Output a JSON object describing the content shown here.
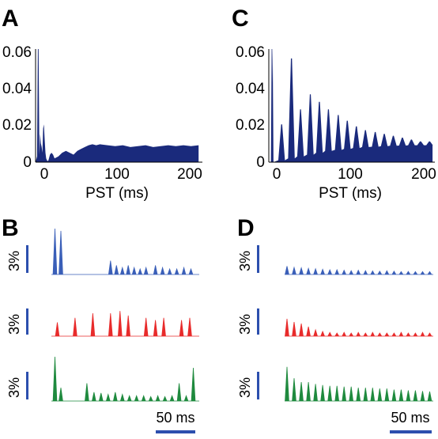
{
  "figure": {
    "panel_letters": [
      "A",
      "C",
      "B",
      "D"
    ],
    "colors": {
      "psth": "#1a2a7c",
      "scale": "#2c4fae",
      "blue": "#3a5fb8",
      "red": "#e82b2b",
      "green": "#1f8a3e"
    },
    "scalebar_time": "50 ms",
    "scalebar_pct": "3%"
  },
  "chart_data": [
    {
      "panel": "A",
      "type": "area",
      "xlabel": "PST (ms)",
      "ylabel": "",
      "xlim": [
        -5,
        215
      ],
      "ylim": [
        0,
        0.06
      ],
      "xticks": [
        0,
        100,
        200
      ],
      "yticks": [
        0,
        0.02,
        0.04,
        0.06
      ],
      "xtick_labels": [
        "0",
        "100",
        "200"
      ],
      "ytick_labels": [
        "0",
        "0.02",
        "0.04",
        "0.06"
      ],
      "series": [
        {
          "x": [
            -5,
            -3,
            -2,
            -1,
            0,
            1,
            2,
            3,
            4,
            5,
            6,
            7,
            8,
            9,
            10,
            11,
            12,
            14,
            16,
            18,
            20,
            25,
            30,
            35,
            40,
            45,
            50,
            55,
            60,
            65,
            70,
            75,
            80,
            90,
            100,
            110,
            120,
            130,
            140,
            150,
            160,
            170,
            180,
            190,
            200,
            210
          ],
          "y": [
            0,
            0.003,
            0.06,
            0.06,
            0.004,
            0.015,
            0.01,
            0.008,
            0.005,
            0.018,
            0.02,
            0.012,
            0.005,
            0.002,
            0.001,
            0.0005,
            0.001,
            0.004,
            0.005,
            0.004,
            0.002,
            0.003,
            0.005,
            0.006,
            0.005,
            0.004,
            0.006,
            0.007,
            0.008,
            0.009,
            0.0095,
            0.009,
            0.0095,
            0.009,
            0.0085,
            0.009,
            0.008,
            0.0085,
            0.009,
            0.008,
            0.0085,
            0.009,
            0.0085,
            0.009,
            0.0085,
            0.009
          ]
        }
      ]
    },
    {
      "panel": "C",
      "type": "area",
      "xlabel": "PST (ms)",
      "ylabel": "",
      "xlim": [
        -5,
        215
      ],
      "ylim": [
        0,
        0.06
      ],
      "xticks": [
        0,
        100,
        200
      ],
      "yticks": [
        0,
        0.02,
        0.04,
        0.06
      ],
      "xtick_labels": [
        "0",
        "100",
        "200"
      ],
      "ytick_labels": [
        "0",
        "0.02",
        "0.04",
        "0.06"
      ],
      "series": [
        {
          "peaks_x": [
            -1,
            0,
            12,
            25,
            37,
            50,
            62,
            74,
            87,
            99,
            111,
            123,
            136,
            148,
            160,
            172,
            184,
            196,
            208
          ],
          "peaks_y": [
            0.06,
            0.06,
            0.02,
            0.055,
            0.028,
            0.036,
            0.032,
            0.028,
            0.025,
            0.022,
            0.019,
            0.017,
            0.016,
            0.015,
            0.014,
            0.013,
            0.012,
            0.011,
            0.011
          ],
          "troughs_y": [
            0.0,
            0.0,
            0.001,
            0.002,
            0.003,
            0.004,
            0.005,
            0.006,
            0.0065,
            0.007,
            0.0075,
            0.008,
            0.0082,
            0.0085,
            0.0087,
            0.0088,
            0.009,
            0.009,
            0.009
          ]
        }
      ]
    },
    {
      "panel": "B",
      "type": "area",
      "series": [
        {
          "name": "",
          "color": "blue",
          "peaks_x": [
            3,
            8,
            50,
            55,
            60,
            65,
            70,
            75,
            80,
            88,
            94,
            100,
            106,
            112,
            118
          ],
          "peaks_y": [
            1.0,
            0.95,
            0.3,
            0.2,
            0.15,
            0.2,
            0.15,
            0.12,
            0.15,
            0.2,
            0.15,
            0.12,
            0.12,
            0.15,
            0.12
          ]
        },
        {
          "name": "",
          "color": "red",
          "peaks_x": [
            5,
            20,
            35,
            50,
            58,
            65,
            80,
            88,
            95,
            110,
            117
          ],
          "peaks_y": [
            0.3,
            0.4,
            0.5,
            0.5,
            0.55,
            0.45,
            0.4,
            0.35,
            0.4,
            0.35,
            0.4
          ]
        },
        {
          "name": "",
          "color": "green",
          "peaks_x": [
            3,
            8,
            30,
            36,
            42,
            48,
            54,
            60,
            66,
            72,
            78,
            84,
            90,
            96,
            102,
            108,
            114,
            120
          ],
          "peaks_y": [
            1.0,
            0.3,
            0.4,
            0.2,
            0.18,
            0.15,
            0.2,
            0.15,
            0.12,
            0.12,
            0.12,
            0.1,
            0.12,
            0.1,
            0.12,
            0.4,
            0.12,
            0.75
          ]
        }
      ]
    },
    {
      "panel": "D",
      "type": "area",
      "series": [
        {
          "name": "",
          "color": "blue",
          "peaks_x": [
            2,
            8,
            14,
            20,
            26,
            32,
            38,
            44,
            50,
            56,
            62,
            68,
            74,
            80,
            86,
            92,
            98,
            104,
            110,
            116,
            122
          ],
          "peaks_y": [
            0.35,
            0.3,
            0.28,
            0.26,
            0.24,
            0.22,
            0.2,
            0.2,
            0.18,
            0.16,
            0.18,
            0.16,
            0.15,
            0.14,
            0.16,
            0.14,
            0.12,
            0.13,
            0.12,
            0.12,
            0.12
          ]
        },
        {
          "name": "",
          "color": "red",
          "peaks_x": [
            2,
            8,
            14,
            20,
            26,
            32,
            38,
            44,
            50,
            56,
            62,
            68,
            74,
            80,
            86,
            92,
            98,
            104,
            110,
            116,
            122
          ],
          "peaks_y": [
            0.55,
            0.45,
            0.4,
            0.3,
            0.2,
            0.15,
            0.12,
            0.1,
            0.12,
            0.1,
            0.12,
            0.1,
            0.12,
            0.1,
            0.1,
            0.1,
            0.12,
            0.1,
            0.1,
            0.12,
            0.1
          ]
        },
        {
          "name": "",
          "color": "green",
          "peaks_x": [
            2,
            8,
            14,
            20,
            26,
            32,
            38,
            44,
            50,
            56,
            62,
            68,
            74,
            80,
            86,
            92,
            98,
            104,
            110,
            116,
            122
          ],
          "peaks_y": [
            0.9,
            0.6,
            0.5,
            0.5,
            0.45,
            0.42,
            0.4,
            0.4,
            0.38,
            0.38,
            0.35,
            0.35,
            0.35,
            0.33,
            0.33,
            0.3,
            0.3,
            0.28,
            0.28,
            0.26,
            0.25
          ]
        }
      ]
    }
  ]
}
